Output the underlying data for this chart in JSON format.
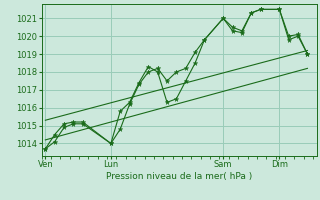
{
  "title": "",
  "xlabel": "Pression niveau de la mer( hPa )",
  "bg_color": "#cce8dc",
  "grid_color": "#99ccb8",
  "line_color": "#1a6b1a",
  "ylim": [
    1013.3,
    1021.8
  ],
  "yticks": [
    1014,
    1015,
    1016,
    1017,
    1018,
    1019,
    1020,
    1021
  ],
  "xlim": [
    -0.2,
    14.5
  ],
  "day_labels": [
    "Ven",
    "Lun",
    "Sam",
    "Dim"
  ],
  "day_positions": [
    0.0,
    3.5,
    9.5,
    12.5
  ],
  "vline_positions": [
    0.0,
    3.5,
    9.5,
    12.5
  ],
  "series1_x": [
    0.0,
    0.5,
    1.0,
    1.5,
    2.0,
    3.5,
    4.0,
    4.5,
    5.0,
    5.5,
    6.0,
    6.5,
    7.0,
    7.5,
    8.0,
    8.5,
    9.5,
    10.0,
    10.5,
    11.0,
    11.5,
    12.5,
    13.0,
    13.5,
    14.0
  ],
  "series1_y": [
    1013.7,
    1014.1,
    1014.9,
    1015.1,
    1015.1,
    1014.0,
    1014.8,
    1016.2,
    1017.3,
    1018.0,
    1018.2,
    1017.5,
    1018.0,
    1018.2,
    1019.1,
    1019.8,
    1021.0,
    1020.5,
    1020.3,
    1021.3,
    1021.5,
    1021.5,
    1019.8,
    1020.0,
    1019.0
  ],
  "series2_x": [
    0.0,
    0.5,
    1.0,
    1.5,
    2.0,
    3.5,
    4.0,
    4.5,
    5.0,
    5.5,
    6.0,
    6.5,
    7.0,
    7.5,
    8.0,
    8.5,
    9.5,
    10.0,
    10.5,
    11.0,
    11.5,
    12.5,
    13.0,
    13.5,
    14.0
  ],
  "series2_y": [
    1013.7,
    1014.5,
    1015.1,
    1015.2,
    1015.2,
    1014.0,
    1015.8,
    1016.3,
    1017.4,
    1018.3,
    1018.0,
    1016.3,
    1016.5,
    1017.5,
    1018.5,
    1019.8,
    1021.0,
    1020.3,
    1020.2,
    1021.3,
    1021.5,
    1021.5,
    1020.0,
    1020.1,
    1019.0
  ],
  "trend1_x": [
    0.0,
    14.0
  ],
  "trend1_y": [
    1015.3,
    1019.2
  ],
  "trend2_x": [
    0.0,
    14.0
  ],
  "trend2_y": [
    1014.2,
    1018.2
  ]
}
